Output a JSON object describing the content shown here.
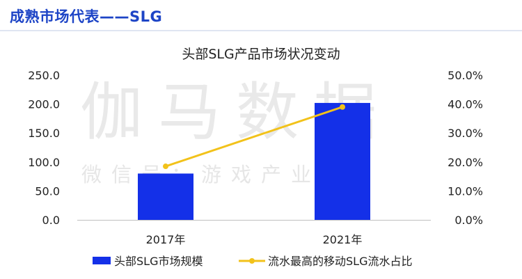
{
  "header": {
    "title": "成熟市场代表——SLG"
  },
  "watermark": {
    "main": "伽马数据",
    "sub": "微信号：游戏产业报告"
  },
  "colors": {
    "header": "#1d44c6",
    "bar": "#1430e8",
    "line": "#f2c21a",
    "axis": "#bfbfbf"
  },
  "chart_data": {
    "type": "bar",
    "title": "头部SLG产品市场状况变动",
    "categories": [
      "2017年",
      "2021年"
    ],
    "series": [
      {
        "name": "头部SLG市场规模",
        "type": "bar",
        "axis": "left",
        "values": [
          80.0,
          202.0
        ]
      },
      {
        "name": "流水最高的移动SLG流水占比",
        "type": "line",
        "axis": "right",
        "values": [
          18.5,
          39.0
        ]
      }
    ],
    "y_left": {
      "ylim": [
        0,
        250
      ],
      "ticks": [
        "250.0",
        "200.0",
        "150.0",
        "100.0",
        "50.0",
        "0.0"
      ]
    },
    "y_right": {
      "ylim": [
        0,
        50
      ],
      "ticks": [
        "50.0%",
        "40.0%",
        "30.0%",
        "20.0%",
        "10.0%",
        "0.0%"
      ]
    },
    "legend_position": "bottom",
    "grid": false
  }
}
